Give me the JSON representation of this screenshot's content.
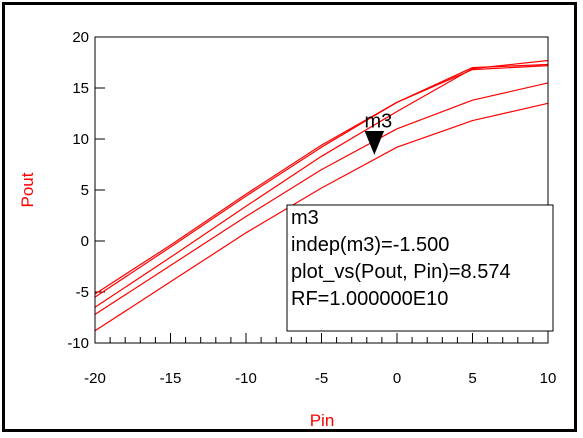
{
  "chart_data": {
    "type": "line",
    "xlabel": "Pin",
    "ylabel": "Pout",
    "xlim": [
      -20,
      10
    ],
    "ylim": [
      -10,
      20
    ],
    "x_ticks": [
      "-20",
      "-15",
      "-10",
      "-5",
      "0",
      "5",
      "10"
    ],
    "y_ticks": [
      "20",
      "15",
      "10",
      "5",
      "0",
      "-5",
      "-10"
    ],
    "grid": false,
    "series": [
      {
        "x": [
          -20,
          -15,
          -10,
          -5,
          0,
          5,
          10
        ],
        "values": [
          -5.2,
          -0.4,
          4.6,
          9.4,
          13.6,
          17.0,
          17.3
        ]
      },
      {
        "x": [
          -20,
          -15,
          -10,
          -5,
          0,
          5,
          10
        ],
        "values": [
          -5.5,
          -0.6,
          4.4,
          9.2,
          13.6,
          16.8,
          17.2
        ]
      },
      {
        "x": [
          -20,
          -15,
          -10,
          -5,
          0,
          5,
          10
        ],
        "values": [
          -6.5,
          -1.6,
          3.4,
          8.3,
          12.7,
          16.9,
          17.7
        ]
      },
      {
        "x": [
          -20,
          -15,
          -10,
          -5,
          0,
          5,
          10
        ],
        "values": [
          -7.2,
          -2.4,
          2.4,
          7.0,
          11.0,
          13.8,
          15.5
        ]
      },
      {
        "x": [
          -20,
          -15,
          -10,
          -5,
          0,
          5,
          10
        ],
        "values": [
          -8.8,
          -4.0,
          0.8,
          5.2,
          9.2,
          11.8,
          13.5
        ]
      }
    ],
    "marker": {
      "name": "m3",
      "x": -1.5,
      "y": 8.574
    },
    "annotation": {
      "lines": [
        "m3",
        "indep(m3)=-1.500",
        "plot_vs(Pout, Pin)=8.574",
        "RF=1.000000E10"
      ]
    },
    "colors": {
      "series": "#ff0000",
      "axis_title": "#ff0000",
      "axes": "#000000"
    }
  }
}
